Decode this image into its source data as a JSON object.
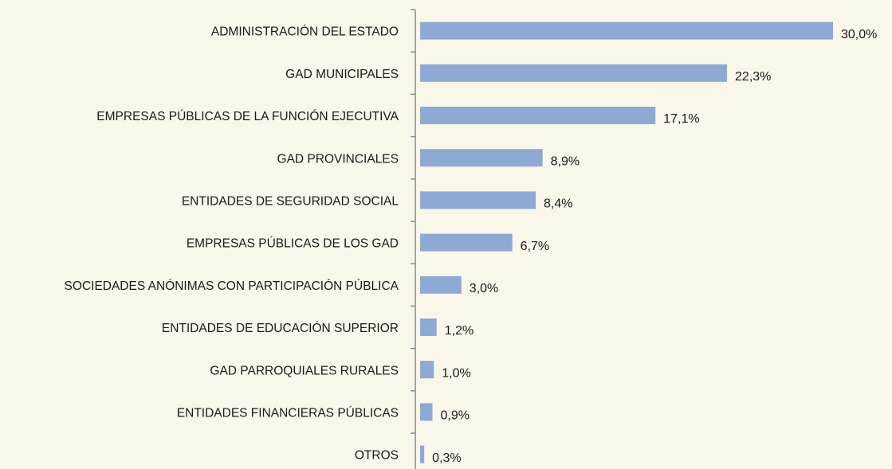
{
  "chart_data": {
    "type": "bar",
    "orientation": "horizontal",
    "categories": [
      "ADMINISTRACIÓN DEL ESTADO",
      "GAD MUNICIPALES",
      "EMPRESAS PÚBLICAS DE LA FUNCIÓN EJECUTIVA",
      "GAD PROVINCIALES",
      "ENTIDADES DE SEGURIDAD SOCIAL",
      "EMPRESAS PÚBLICAS DE LOS GAD",
      "SOCIEDADES ANÓNIMAS CON PARTICIPACIÓN PÚBLICA",
      "ENTIDADES DE EDUCACIÓN SUPERIOR",
      "GAD PARROQUIALES RURALES",
      "ENTIDADES FINANCIERAS PÚBLICAS",
      "OTROS"
    ],
    "values": [
      30.0,
      22.3,
      17.1,
      8.9,
      8.4,
      6.7,
      3.0,
      1.2,
      1.0,
      0.9,
      0.3
    ],
    "value_labels": [
      "30,0%",
      "22,3%",
      "17,1%",
      "8,9%",
      "8,4%",
      "6,7%",
      "3,0%",
      "1,2%",
      "1,0%",
      "0,9%",
      "0,3%"
    ],
    "color": "#8eaad4"
  }
}
